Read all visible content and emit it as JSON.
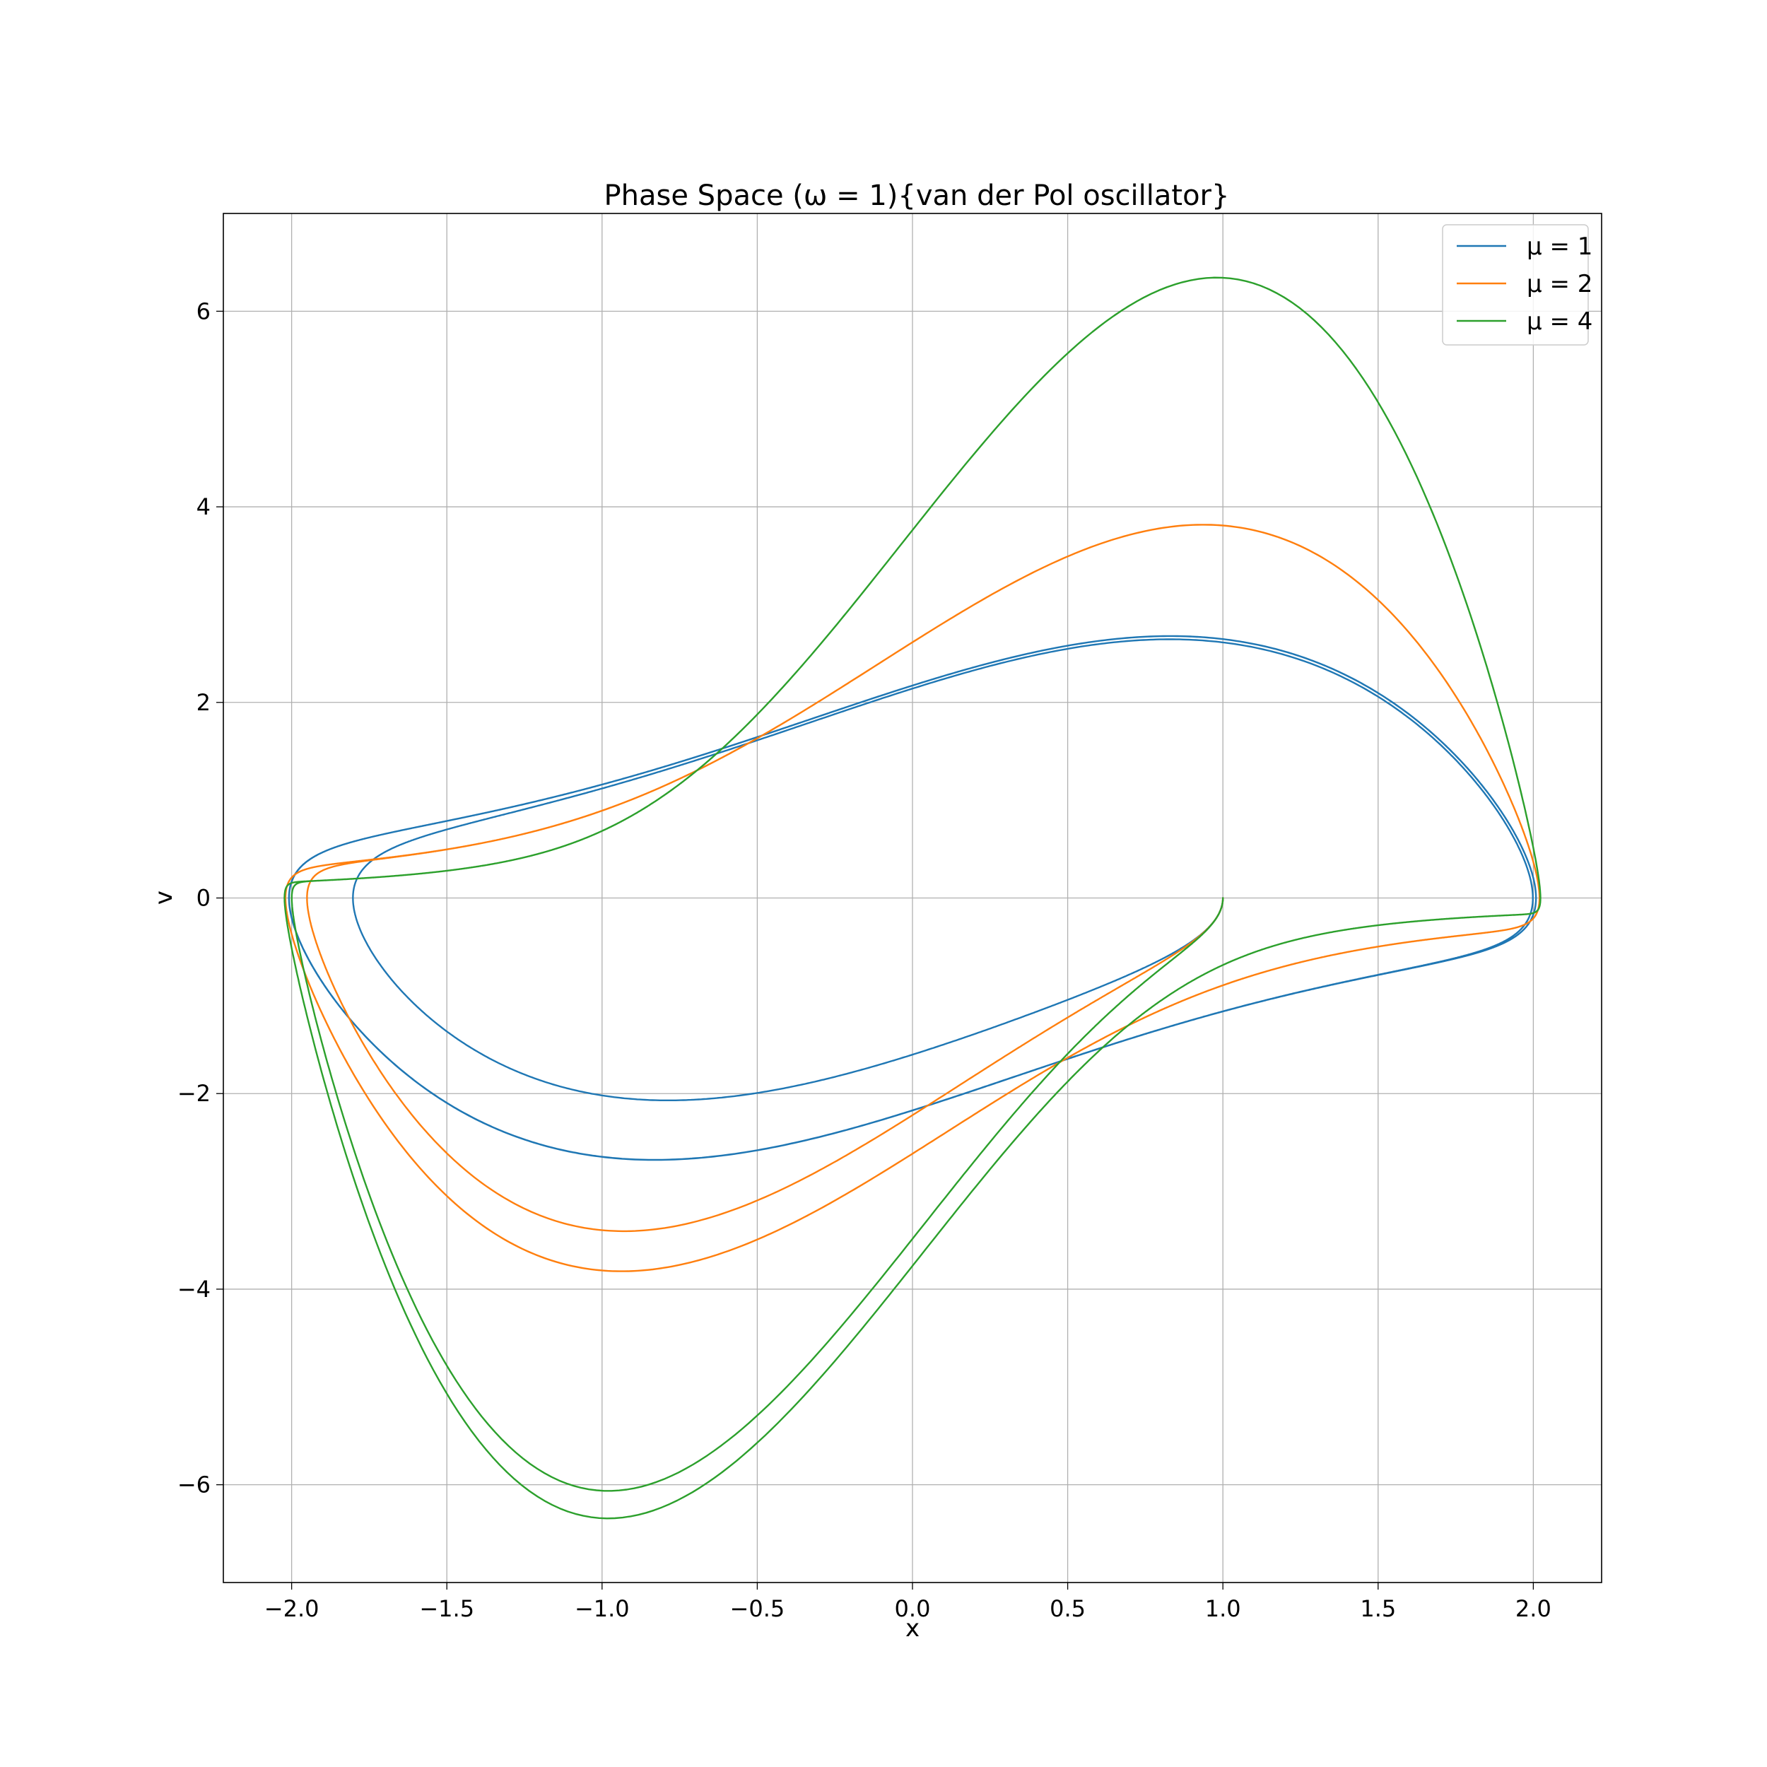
{
  "chart_data": {
    "type": "line",
    "title": "Phase Space (ω = 1){van der Pol oscillator}",
    "xlabel": "x",
    "ylabel": "v",
    "xlim": [
      -2.22,
      2.22
    ],
    "ylim": [
      -7.0,
      7.0
    ],
    "xticks": [
      -2.0,
      -1.5,
      -1.0,
      -0.5,
      0.0,
      0.5,
      1.0,
      1.5,
      2.0
    ],
    "xtick_labels": [
      "−2.0",
      "−1.5",
      "−1.0",
      "−0.5",
      "0.0",
      "0.5",
      "1.0",
      "1.5",
      "2.0"
    ],
    "yticks": [
      -6,
      -4,
      -2,
      0,
      2,
      4,
      6
    ],
    "ytick_labels": [
      "−6",
      "−4",
      "−2",
      "0",
      "2",
      "4",
      "6"
    ],
    "grid": true,
    "legend_position": "top-right",
    "initial_condition": {
      "x": 1.0,
      "v": 0.0
    },
    "simulation": {
      "dt": 0.002,
      "t_max": 20
    },
    "series": [
      {
        "name": "μ = 1",
        "mu": 1,
        "color": "#1f77b4"
      },
      {
        "name": "μ = 2",
        "mu": 2,
        "color": "#ff7f0e"
      },
      {
        "name": "μ = 4",
        "mu": 4,
        "color": "#2ca02c"
      }
    ]
  }
}
